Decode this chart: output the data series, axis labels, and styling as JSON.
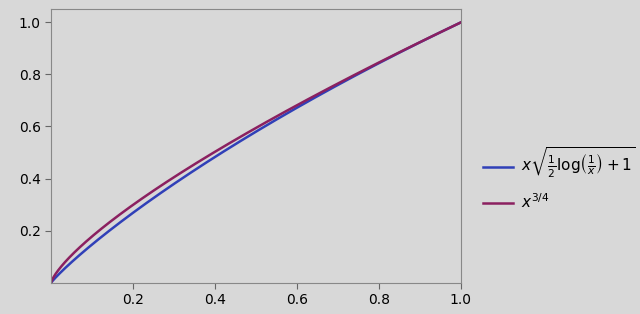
{
  "xlim": [
    0,
    1.0
  ],
  "ylim": [
    0,
    1.05
  ],
  "xticks": [
    0.2,
    0.4,
    0.6,
    0.8,
    1.0
  ],
  "yticks": [
    0.2,
    0.4,
    0.6,
    0.8,
    1.0
  ],
  "background_color": "#d8d8d8",
  "line1_color": "#3040b8",
  "line2_color": "#8b2060",
  "line1_label": "$x\\sqrt{\\frac{1}{2}\\log\\!\\left(\\frac{1}{x}\\right)+1}$",
  "line2_label": "$x^{3/4}$",
  "linewidth": 1.8,
  "n_points": 2000
}
